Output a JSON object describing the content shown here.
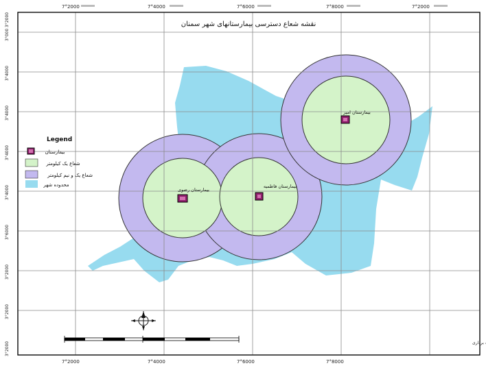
{
  "map": {
    "title": "نقشه شعاع دسترسی بیمارستانهای شهر سمنان",
    "credit": "ماخذ: ترسیم نگارنده با استفاده از داده های سازمان نقشه برداری",
    "colors": {
      "city_area": "#97dbef",
      "outer_buffer": "#c3b9ef",
      "inner_buffer": "#d4f3c9",
      "hospital_fill": "#8f1f6c",
      "grid": "#8a8a8a",
      "frame": "#000000"
    },
    "top_ticks": [
      "7°2000",
      "7°4000",
      "7°6000",
      "7°8000",
      "7°2000"
    ],
    "left_ticks": [
      "3°000",
      "3°4000",
      "3°4000",
      "3°4000",
      "3°4000",
      "3°6000",
      "3°2000",
      "3°2000",
      "3°2000",
      "3°2000"
    ],
    "bottom_ticks": [
      "7°2000",
      "7°4000",
      "7°6000",
      "7°8000"
    ],
    "legend": {
      "title": "Legend",
      "items": [
        {
          "label": "بیمارستان",
          "symbol": "hospital"
        },
        {
          "label": "شعاع یک کیلومتر",
          "symbol": "inner"
        },
        {
          "label": "شعاع یک و نیم کیلومتر",
          "symbol": "outer"
        },
        {
          "label": "محدوده شهر",
          "symbol": "city"
        }
      ]
    },
    "hospitals": [
      {
        "name": "بیمارستان امیر",
        "id": "h1"
      },
      {
        "name": "بیمارستان فاطمیه",
        "id": "h2"
      },
      {
        "name": "بیمارستان رضوی",
        "id": "h3"
      }
    ],
    "north_arrow": "north-arrow-icon",
    "scale_bar": "scale-bar"
  }
}
